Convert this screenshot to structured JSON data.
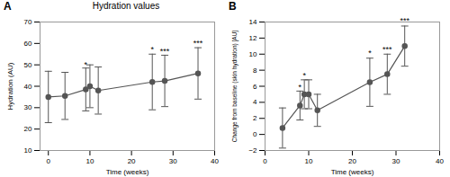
{
  "chart_data": [
    {
      "type": "line",
      "panel_label": "A",
      "title": "Hydration values",
      "xlabel": "Time (weeks)",
      "ylabel": "Hydration (AU)",
      "xlim": [
        -2,
        40
      ],
      "ylim": [
        10,
        70
      ],
      "xticks": [
        0,
        10,
        20,
        30,
        40
      ],
      "yticks": [
        10,
        20,
        30,
        40,
        50,
        60,
        70
      ],
      "x": [
        0,
        4,
        9,
        10,
        12,
        25,
        28,
        36
      ],
      "values": [
        35,
        35.5,
        38.5,
        40,
        38,
        42,
        42.5,
        46
      ],
      "yerr": [
        12,
        11,
        10,
        10,
        11,
        13,
        12,
        12
      ],
      "color": "#555555",
      "marker": "circle",
      "annotations": [
        {
          "x": 9,
          "y": 49,
          "text": "*"
        },
        {
          "x": 25,
          "y": 56,
          "text": "*"
        },
        {
          "x": 28,
          "y": 55,
          "text": "***"
        },
        {
          "x": 36,
          "y": 59,
          "text": "***"
        }
      ]
    },
    {
      "type": "line",
      "panel_label": "B",
      "xlabel": "Time (weeks)",
      "ylabel": "Change from baseline (skin hydration) [AU]",
      "xlim": [
        0,
        40
      ],
      "ylim": [
        -2,
        14
      ],
      "xticks": [
        0,
        10,
        20,
        30,
        40
      ],
      "yticks": [
        -2,
        0,
        2,
        4,
        6,
        8,
        10,
        12,
        14
      ],
      "x": [
        4,
        8,
        9,
        10,
        12,
        24,
        28,
        32
      ],
      "values": [
        0.8,
        3.6,
        5.0,
        5.0,
        3.0,
        6.5,
        7.5,
        11.0
      ],
      "yerr": [
        2.5,
        1.8,
        1.8,
        1.8,
        2.0,
        3.0,
        2.5,
        2.5
      ],
      "color": "#555555",
      "marker": "circle",
      "annotations": [
        {
          "x": 8,
          "y": 5.5,
          "text": "*"
        },
        {
          "x": 9,
          "y": 7.0,
          "text": "*"
        },
        {
          "x": 24,
          "y": 9.8,
          "text": "*"
        },
        {
          "x": 28,
          "y": 10.3,
          "text": "***"
        },
        {
          "x": 32,
          "y": 13.8,
          "text": "***"
        }
      ]
    }
  ]
}
